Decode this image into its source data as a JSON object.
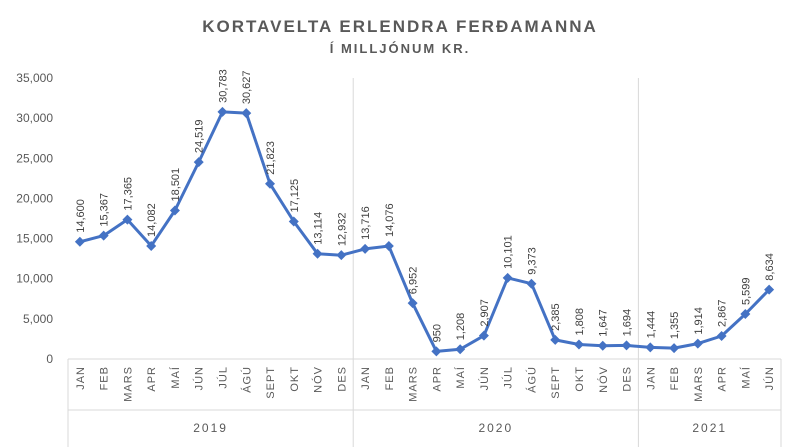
{
  "chart_data": {
    "type": "line",
    "title": "KORTAVELTA ERLENDRA FERÐAMANNA",
    "subtitle": "Í MILLJÓNUM KR.",
    "ylim": [
      0,
      35000
    ],
    "yticks": [
      "0",
      "5,000",
      "10,000",
      "15,000",
      "20,000",
      "25,000",
      "30,000",
      "35,000"
    ],
    "ytick_values": [
      0,
      5000,
      10000,
      15000,
      20000,
      25000,
      30000,
      35000
    ],
    "grid": false,
    "legend": "none",
    "color": "#4472c4",
    "categories": [
      "JAN",
      "FEB",
      "MARS",
      "APR",
      "MAÍ",
      "JÚN",
      "JÚL",
      "ÁGÚ",
      "SEPT",
      "OKT",
      "NÓV",
      "DES",
      "JAN",
      "FEB",
      "MARS",
      "APR",
      "MAÍ",
      "JÚN",
      "JÚL",
      "ÁGÚ",
      "SEPT",
      "OKT",
      "NÓV",
      "DES",
      "JAN",
      "FEB",
      "MARS",
      "APR",
      "MAÍ",
      "JÚN"
    ],
    "groups": [
      {
        "label": "2019",
        "count": 12
      },
      {
        "label": "2020",
        "count": 12
      },
      {
        "label": "2021",
        "count": 6
      }
    ],
    "values": [
      14600,
      15367,
      17365,
      14082,
      18501,
      24519,
      30783,
      30627,
      21823,
      17125,
      13114,
      12932,
      13716,
      14076,
      6952,
      950,
      1208,
      2907,
      10101,
      9373,
      2385,
      1808,
      1647,
      1694,
      1444,
      1355,
      1914,
      2867,
      5599,
      8634
    ],
    "data_labels": [
      "14,600",
      "15,367",
      "17,365",
      "14,082",
      "18,501",
      "24,519",
      "30,783",
      "30,627",
      "21,823",
      "17,125",
      "13,114",
      "12,932",
      "13,716",
      "14,076",
      "6,952",
      "950",
      "1,208",
      "2,907",
      "10,101",
      "9,373",
      "2,385",
      "1,808",
      "1,647",
      "1,694",
      "1,444",
      "1,355",
      "1,914",
      "2,867",
      "5,599",
      "8,634"
    ]
  }
}
